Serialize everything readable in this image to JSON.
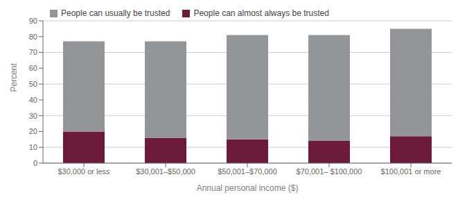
{
  "chart_data": {
    "type": "bar",
    "xlabel": "Annual personal income ($)",
    "ylabel": "Percent",
    "categories": [
      "$30,000 or less",
      "$30,001–$50,000",
      "$50,001–$70,000",
      "$70,001– $100,000",
      "$100,001 or more"
    ],
    "series": [
      {
        "name": "People can almost always be trusted",
        "color": "#6b1a3a",
        "values": [
          20.0,
          16.0,
          15.0,
          14.0,
          17.0
        ]
      },
      {
        "name": "People can usually be trusted",
        "color": "#939598",
        "values": [
          57.0,
          61.0,
          66.0,
          67.0,
          68.0
        ]
      }
    ],
    "stacked": true,
    "ylim": [
      0,
      90
    ],
    "yticks": [
      0,
      10,
      20,
      30,
      40,
      50,
      60,
      70,
      80,
      90
    ],
    "grid": true,
    "legend": "upper left"
  }
}
